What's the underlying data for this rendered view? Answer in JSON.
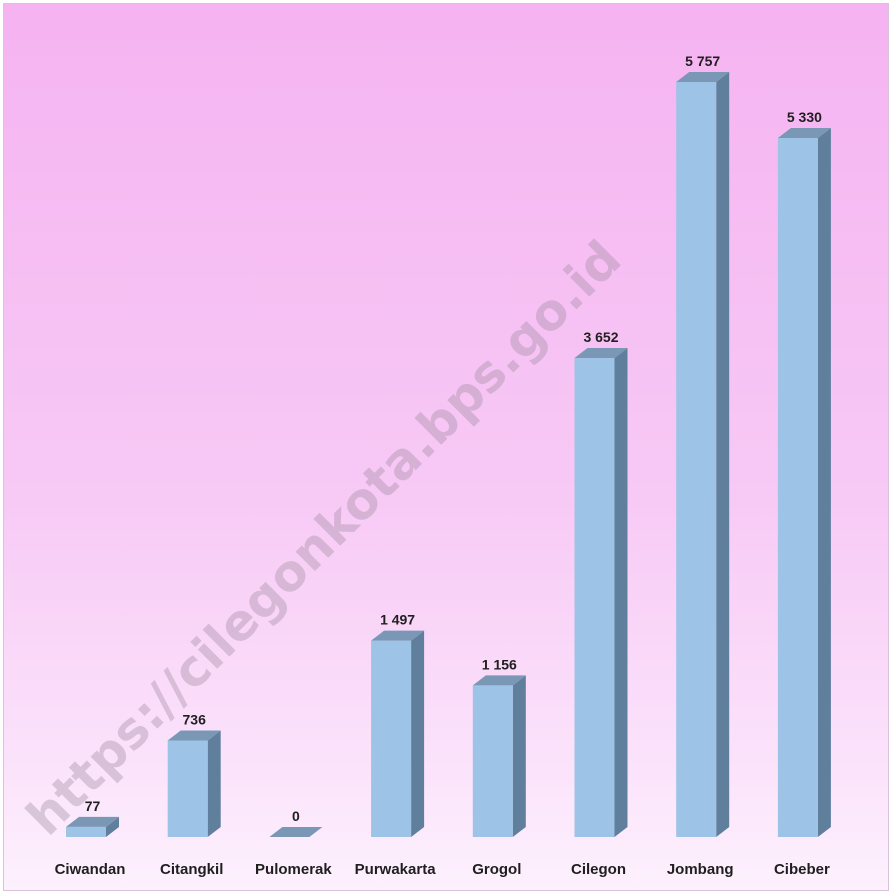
{
  "chart_data": {
    "type": "bar",
    "categories": [
      "Ciwandan",
      "Citangkil",
      "Pulomerak",
      "Purwakarta",
      "Grogol",
      "Cilegon",
      "Jombang",
      "Cibeber"
    ],
    "values": [
      77,
      736,
      0,
      1497,
      1156,
      3652,
      5757,
      5330
    ],
    "value_labels": [
      "77",
      "736",
      "0",
      "1 497",
      "1 156",
      "3 652",
      "5 757",
      "5 330"
    ],
    "ylim": [
      0,
      5757
    ],
    "grid": false,
    "legend": "none",
    "style": "3d",
    "bar_color": "#9dc3e6",
    "bar_side_color": "#5f7f9c",
    "bar_top_color": "#7a98b6"
  },
  "watermark": "https://cilegonkota.bps.go.id"
}
